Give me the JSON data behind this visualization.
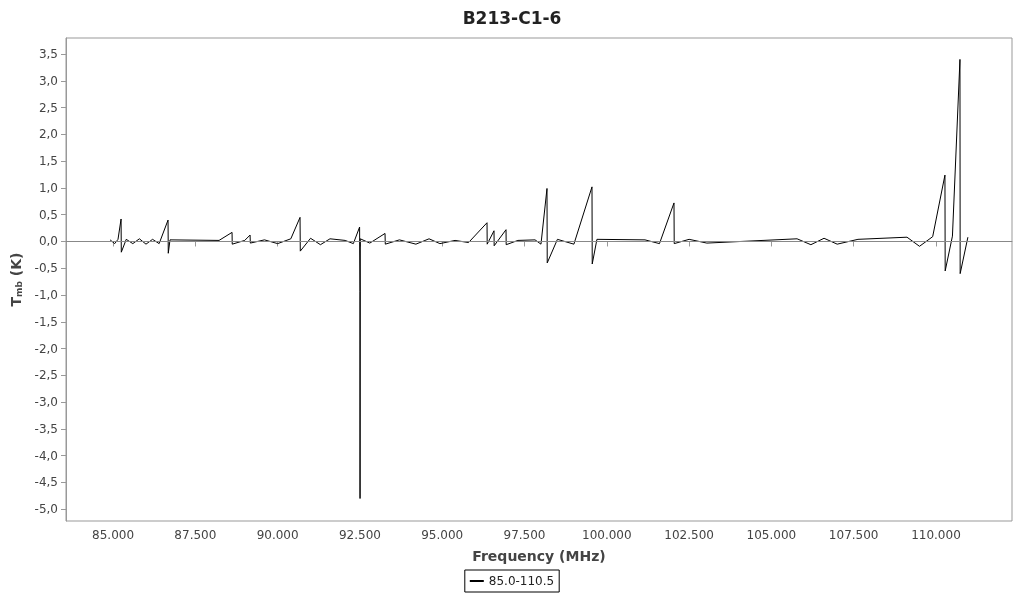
{
  "chart_data": {
    "type": "line",
    "title": "B213-C1-6",
    "xlabel": "Frequency (MHz)",
    "ylabel": "T$_{mb}$ (K)",
    "x": [
      84910,
      85050,
      85150,
      85243,
      85250,
      85400,
      85600,
      85800,
      86000,
      86200,
      86400,
      86670,
      86677,
      86730,
      88220,
      88615,
      88620,
      89000,
      89162,
      89170,
      89600,
      90000,
      90400,
      90680,
      90688,
      91000,
      91300,
      91590,
      92050,
      92300,
      92490,
      92500,
      92503,
      92510,
      92800,
      93262,
      93270,
      93700,
      94200,
      94600,
      94930,
      95390,
      95800,
      96361,
      96366,
      96573,
      96578,
      96938,
      96943,
      97300,
      97820,
      98000,
      98183,
      98190,
      98500,
      99000,
      99550,
      99557,
      99700,
      101160,
      101600,
      102041,
      102048,
      102500,
      103040,
      105780,
      106200,
      106600,
      107000,
      107630,
      109120,
      109500,
      109900,
      110273,
      110280,
      110500,
      110729,
      110735,
      110970
    ],
    "series": [
      {
        "name": "85.0-110.5",
        "color": "#000000",
        "values": [
          0.03,
          -0.04,
          0.04,
          0.42,
          -0.2,
          0.04,
          -0.04,
          0.05,
          -0.05,
          0.04,
          -0.04,
          0.4,
          -0.22,
          0.03,
          0.02,
          0.17,
          -0.05,
          0.02,
          0.12,
          -0.03,
          0.03,
          -0.04,
          0.05,
          0.45,
          -0.18,
          0.06,
          -0.06,
          0.05,
          0.02,
          -0.04,
          0.27,
          -0.93,
          -4.8,
          0.05,
          -0.03,
          0.15,
          -0.05,
          0.03,
          -0.05,
          0.05,
          -0.04,
          0.02,
          -0.02,
          0.35,
          -0.05,
          0.2,
          -0.08,
          0.22,
          -0.06,
          0.02,
          0.03,
          -0.05,
          0.99,
          -0.4,
          0.04,
          -0.05,
          1.02,
          -0.42,
          0.04,
          0.03,
          -0.04,
          0.72,
          -0.04,
          0.04,
          -0.03,
          0.05,
          -0.06,
          0.06,
          -0.05,
          0.04,
          0.08,
          -0.09,
          0.09,
          1.24,
          -0.55,
          0.1,
          3.4,
          -0.6,
          0.08
        ]
      }
    ],
    "xlim": [
      83570,
      112310
    ],
    "xticks": [
      {
        "value": 85000,
        "label": "85.000"
      },
      {
        "value": 87500,
        "label": "87.500"
      },
      {
        "value": 90000,
        "label": "90.000"
      },
      {
        "value": 92500,
        "label": "92.500"
      },
      {
        "value": 95000,
        "label": "95.000"
      },
      {
        "value": 97500,
        "label": "97.500"
      },
      {
        "value": 100000,
        "label": "100.000"
      },
      {
        "value": 102500,
        "label": "102.500"
      },
      {
        "value": 105000,
        "label": "105.000"
      },
      {
        "value": 107500,
        "label": "107.500"
      },
      {
        "value": 110000,
        "label": "110.000"
      }
    ],
    "ylim": [
      -5.22,
      3.8
    ],
    "yticks": [
      {
        "value": -5,
        "label": "-5,0"
      },
      {
        "value": -4.5,
        "label": "-4,5"
      },
      {
        "value": -4,
        "label": "-4,0"
      },
      {
        "value": -3.5,
        "label": "-3,5"
      },
      {
        "value": -3,
        "label": "-3,0"
      },
      {
        "value": -2.5,
        "label": "-2,5"
      },
      {
        "value": -2,
        "label": "-2,0"
      },
      {
        "value": -1.5,
        "label": "-1,5"
      },
      {
        "value": -1,
        "label": "-1,0"
      },
      {
        "value": -0.5,
        "label": "-0,5"
      },
      {
        "value": 0,
        "label": "0,0"
      },
      {
        "value": 0.5,
        "label": "0,5"
      },
      {
        "value": 1,
        "label": "1,0"
      },
      {
        "value": 1.5,
        "label": "1,5"
      },
      {
        "value": 2,
        "label": "2,0"
      },
      {
        "value": 2.5,
        "label": "2,5"
      },
      {
        "value": 3,
        "label": "3,0"
      },
      {
        "value": 3.5,
        "label": "3,5"
      }
    ],
    "ref_lines": [
      {
        "axis": "y",
        "value": 0,
        "color": "#888888"
      }
    ],
    "grid": false,
    "legend": "bottom",
    "marker": "none",
    "line_style": "solid"
  }
}
